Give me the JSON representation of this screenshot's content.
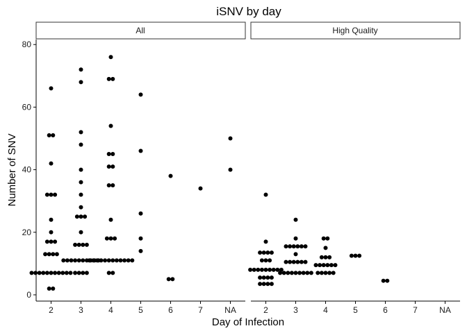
{
  "chart_data": {
    "type": "scatter",
    "title": "iSNV by day",
    "xlabel": "Day of Infection",
    "ylabel": "Number of SNV",
    "categories": [
      "2",
      "3",
      "4",
      "5",
      "6",
      "7",
      "NA"
    ],
    "y_ticks": [
      0,
      20,
      40,
      60,
      80
    ],
    "ylim": [
      -2,
      81.6
    ],
    "grid": false,
    "legend": "none",
    "point_color": "#000000",
    "panels": [
      {
        "label": "All",
        "points": [
          {
            "x": "2",
            "y": 66,
            "count": 1
          },
          {
            "x": "2",
            "y": 51,
            "count": 2
          },
          {
            "x": "2",
            "y": 42,
            "count": 1
          },
          {
            "x": "2",
            "y": 32,
            "count": 3
          },
          {
            "x": "2",
            "y": 24,
            "count": 1
          },
          {
            "x": "2",
            "y": 20,
            "count": 1
          },
          {
            "x": "2",
            "y": 17,
            "count": 3
          },
          {
            "x": "2",
            "y": 13,
            "count": 4
          },
          {
            "x": "2",
            "y": 7,
            "count": 11
          },
          {
            "x": "2",
            "y": 2,
            "count": 2
          },
          {
            "x": "3",
            "y": 72,
            "count": 1
          },
          {
            "x": "3",
            "y": 68,
            "count": 1
          },
          {
            "x": "3",
            "y": 52,
            "count": 1
          },
          {
            "x": "3",
            "y": 48,
            "count": 1
          },
          {
            "x": "3",
            "y": 40,
            "count": 1
          },
          {
            "x": "3",
            "y": 36,
            "count": 1
          },
          {
            "x": "3",
            "y": 32,
            "count": 1
          },
          {
            "x": "3",
            "y": 28,
            "count": 1
          },
          {
            "x": "3",
            "y": 25,
            "count": 3
          },
          {
            "x": "3",
            "y": 20,
            "count": 1
          },
          {
            "x": "3",
            "y": 16,
            "count": 4
          },
          {
            "x": "3",
            "y": 11,
            "count": 10
          },
          {
            "x": "3",
            "y": 7,
            "count": 4
          },
          {
            "x": "4",
            "y": 76,
            "count": 1
          },
          {
            "x": "4",
            "y": 69,
            "count": 2
          },
          {
            "x": "4",
            "y": 54,
            "count": 1
          },
          {
            "x": "4",
            "y": 45,
            "count": 2
          },
          {
            "x": "4",
            "y": 41,
            "count": 2
          },
          {
            "x": "4",
            "y": 35,
            "count": 2
          },
          {
            "x": "4",
            "y": 24,
            "count": 1
          },
          {
            "x": "4",
            "y": 18,
            "count": 3
          },
          {
            "x": "4",
            "y": 11,
            "count": 12
          },
          {
            "x": "4",
            "y": 7,
            "count": 2
          },
          {
            "x": "5",
            "y": 64,
            "count": 1
          },
          {
            "x": "5",
            "y": 46,
            "count": 1
          },
          {
            "x": "5",
            "y": 26,
            "count": 1
          },
          {
            "x": "5",
            "y": 18,
            "count": 1
          },
          {
            "x": "5",
            "y": 14,
            "count": 1
          },
          {
            "x": "6",
            "y": 38,
            "count": 1
          },
          {
            "x": "6",
            "y": 5,
            "count": 2
          },
          {
            "x": "7",
            "y": 34,
            "count": 1
          },
          {
            "x": "NA",
            "y": 50,
            "count": 1
          },
          {
            "x": "NA",
            "y": 40,
            "count": 1
          }
        ]
      },
      {
        "label": "High Quality",
        "points": [
          {
            "x": "2",
            "y": 32,
            "count": 1
          },
          {
            "x": "2",
            "y": 17,
            "count": 1
          },
          {
            "x": "2",
            "y": 13.5,
            "count": 4
          },
          {
            "x": "2",
            "y": 11,
            "count": 3
          },
          {
            "x": "2",
            "y": 8,
            "count": 9
          },
          {
            "x": "2",
            "y": 5.5,
            "count": 4
          },
          {
            "x": "2",
            "y": 3.5,
            "count": 4
          },
          {
            "x": "3",
            "y": 24,
            "count": 1
          },
          {
            "x": "3",
            "y": 18,
            "count": 1
          },
          {
            "x": "3",
            "y": 15.5,
            "count": 6
          },
          {
            "x": "3",
            "y": 13,
            "count": 1
          },
          {
            "x": "3",
            "y": 10.5,
            "count": 6
          },
          {
            "x": "3",
            "y": 7,
            "count": 9
          },
          {
            "x": "4",
            "y": 18,
            "count": 2
          },
          {
            "x": "4",
            "y": 15,
            "count": 1
          },
          {
            "x": "4",
            "y": 12,
            "count": 3
          },
          {
            "x": "4",
            "y": 9.5,
            "count": 6
          },
          {
            "x": "4",
            "y": 7,
            "count": 5
          },
          {
            "x": "5",
            "y": 12.5,
            "count": 3
          },
          {
            "x": "6",
            "y": 4.5,
            "count": 2
          }
        ]
      }
    ]
  }
}
